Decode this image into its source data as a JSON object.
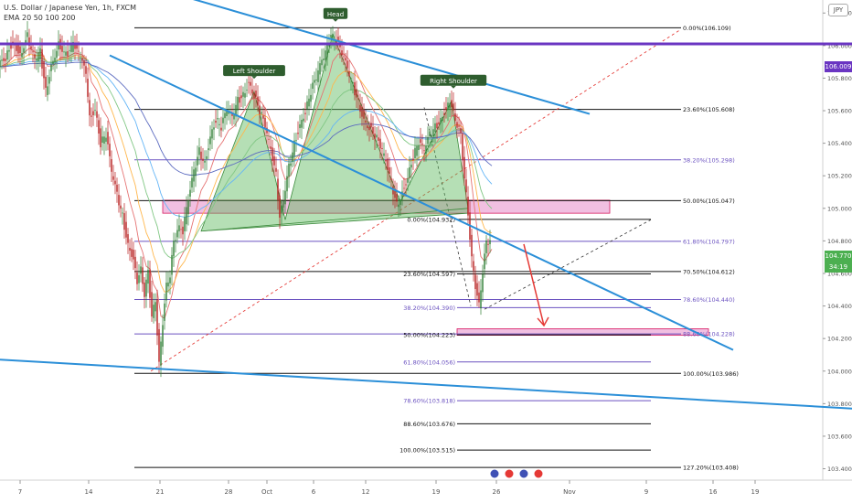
{
  "header": {
    "title": "U.S. Dollar / Japanese Yen, 1h, FXCM",
    "indicator": "EMA 20 50 100 200",
    "currency": "JPY"
  },
  "price_tags": {
    "resistance": "106.009",
    "last": "104.770",
    "countdown": "34:19"
  },
  "chart_data": {
    "type": "line",
    "symbol": "USDJPY",
    "timeframe": "1h",
    "y_ticks": [
      "106.200",
      "106.000",
      "105.800",
      "105.600",
      "105.400",
      "105.200",
      "105.000",
      "104.800",
      "104.600",
      "104.400",
      "104.200",
      "104.000",
      "103.800",
      "103.600",
      "103.400"
    ],
    "x_ticks": [
      "7",
      "14",
      "21",
      "28",
      "Oct",
      "6",
      "12",
      "19",
      "26",
      "Nov",
      "9",
      "16",
      "19"
    ],
    "ylim": [
      103.33,
      106.28
    ],
    "price_path": [
      [
        0,
        105.87
      ],
      [
        8,
        105.93
      ],
      [
        16,
        106.03
      ],
      [
        24,
        105.95
      ],
      [
        32,
        106.06
      ],
      [
        40,
        105.9
      ],
      [
        46,
        105.96
      ],
      [
        52,
        105.72
      ],
      [
        58,
        105.88
      ],
      [
        66,
        106.02
      ],
      [
        74,
        105.94
      ],
      [
        82,
        106.0
      ],
      [
        90,
        105.92
      ],
      [
        96,
        105.82
      ],
      [
        100,
        105.55
      ],
      [
        106,
        105.62
      ],
      [
        112,
        105.4
      ],
      [
        118,
        105.45
      ],
      [
        124,
        105.22
      ],
      [
        130,
        105.08
      ],
      [
        136,
        104.95
      ],
      [
        142,
        104.78
      ],
      [
        148,
        104.7
      ],
      [
        152,
        104.55
      ],
      [
        156,
        104.62
      ],
      [
        160,
        104.48
      ],
      [
        164,
        104.6
      ],
      [
        168,
        104.35
      ],
      [
        172,
        104.42
      ],
      [
        176,
        104.05
      ],
      [
        180,
        104.3
      ],
      [
        184,
        104.52
      ],
      [
        188,
        104.6
      ],
      [
        192,
        104.78
      ],
      [
        196,
        104.88
      ],
      [
        202,
        104.86
      ],
      [
        208,
        105.05
      ],
      [
        214,
        105.22
      ],
      [
        220,
        105.35
      ],
      [
        226,
        105.28
      ],
      [
        232,
        105.45
      ],
      [
        238,
        105.55
      ],
      [
        244,
        105.5
      ],
      [
        250,
        105.6
      ],
      [
        256,
        105.55
      ],
      [
        262,
        105.66
      ],
      [
        268,
        105.7
      ],
      [
        274,
        105.78
      ],
      [
        280,
        105.7
      ],
      [
        286,
        105.6
      ],
      [
        292,
        105.5
      ],
      [
        298,
        105.35
      ],
      [
        304,
        105.2
      ],
      [
        308,
        104.95
      ],
      [
        312,
        105.05
      ],
      [
        318,
        105.25
      ],
      [
        324,
        105.4
      ],
      [
        330,
        105.52
      ],
      [
        336,
        105.6
      ],
      [
        342,
        105.72
      ],
      [
        348,
        105.8
      ],
      [
        354,
        105.9
      ],
      [
        360,
        105.98
      ],
      [
        364,
        106.07
      ],
      [
        370,
        106.03
      ],
      [
        376,
        105.95
      ],
      [
        382,
        105.85
      ],
      [
        388,
        105.75
      ],
      [
        394,
        105.65
      ],
      [
        400,
        105.55
      ],
      [
        406,
        105.5
      ],
      [
        412,
        105.45
      ],
      [
        418,
        105.38
      ],
      [
        424,
        105.28
      ],
      [
        430,
        105.15
      ],
      [
        436,
        105.02
      ],
      [
        442,
        105.1
      ],
      [
        448,
        105.2
      ],
      [
        454,
        105.32
      ],
      [
        460,
        105.4
      ],
      [
        466,
        105.35
      ],
      [
        472,
        105.45
      ],
      [
        478,
        105.5
      ],
      [
        484,
        105.55
      ],
      [
        490,
        105.62
      ],
      [
        494,
        105.66
      ],
      [
        498,
        105.58
      ],
      [
        502,
        105.52
      ],
      [
        506,
        105.44
      ],
      [
        510,
        105.2
      ],
      [
        514,
        104.95
      ],
      [
        518,
        104.7
      ],
      [
        522,
        104.52
      ],
      [
        526,
        104.4
      ],
      [
        530,
        104.62
      ],
      [
        534,
        104.78
      ],
      [
        538,
        104.82
      ]
    ],
    "head_and_shoulders": {
      "labels": [
        "Left Shoulder",
        "Head",
        "Right Shoulder"
      ],
      "polygon": [
        [
          220,
          104.86
        ],
        [
          278,
          105.72
        ],
        [
          312,
          104.93
        ],
        [
          364,
          106.07
        ],
        [
          438,
          105.04
        ],
        [
          494,
          105.66
        ],
        [
          512,
          105.0
        ]
      ]
    },
    "trendlines": [
      {
        "x1": 190,
        "y1": 106.32,
        "x2": 645,
        "y2": 105.58
      },
      {
        "x1": 120,
        "y1": 105.94,
        "x2": 802,
        "y2": 104.13
      },
      {
        "x1": 0,
        "y1": 104.07,
        "x2": 932,
        "y2": 103.77
      },
      {
        "x1": 0,
        "y1": 106.01,
        "x2": 932,
        "y2": 106.01
      }
    ],
    "fib_main": [
      {
        "label": "0.00%(106.109)",
        "value": 106.109
      },
      {
        "label": "23.60%(105.608)",
        "value": 105.608
      },
      {
        "label": "38.20%(105.298)",
        "value": 105.298
      },
      {
        "label": "50.00%(105.047)",
        "value": 105.047
      },
      {
        "label": "61.80%(104.797)",
        "value": 104.797
      },
      {
        "label": "70.50%(104.612)",
        "value": 104.612
      },
      {
        "label": "78.60%(104.440)",
        "value": 104.44
      },
      {
        "label": "88.60%(104.228)",
        "value": 104.228
      },
      {
        "label": "100.00%(103.986)",
        "value": 103.986
      },
      {
        "label": "127.20%(103.408)",
        "value": 103.408
      }
    ],
    "fib_secondary": [
      {
        "label": "0.00%(104.932)",
        "value": 104.932
      },
      {
        "label": "23.60%(104.597)",
        "value": 104.597
      },
      {
        "label": "38.20%(104.390)",
        "value": 104.39
      },
      {
        "label": "50.00%(104.223)",
        "value": 104.223
      },
      {
        "label": "61.80%(104.056)",
        "value": 104.056
      },
      {
        "label": "78.60%(103.818)",
        "value": 103.818
      },
      {
        "label": "88.60%(103.676)",
        "value": 103.676
      },
      {
        "label": "100.00%(103.515)",
        "value": 103.515
      }
    ],
    "zones": [
      {
        "x1": 178,
        "x2": 667,
        "y_top": 105.05,
        "y_bottom": 104.97
      },
      {
        "x1": 500,
        "x2": 775,
        "y_top": 104.26,
        "y_bottom": 104.22
      }
    ],
    "colors": {
      "trend_blue": "#2b8fd8",
      "purple_line": "#6a35c2",
      "fib_purple": "#6b52c0",
      "pattern_fill": "#5cb85c",
      "zone_fill": "#e58ac8",
      "arrow_red": "#e53935",
      "bar_up": "#2e7d32",
      "bar_down": "#b71c1c"
    }
  }
}
